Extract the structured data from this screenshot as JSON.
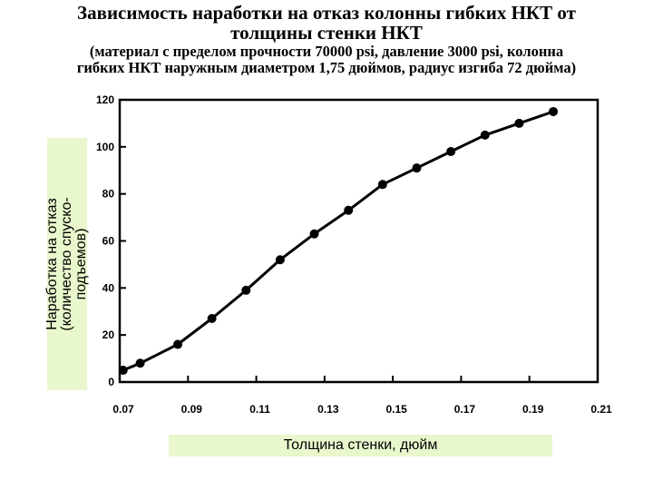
{
  "header": {
    "title_line1": "Зависимость наработки на отказ колонны гибких НКТ от",
    "title_line2": "толщины стенки НКТ",
    "subtitle_line1": "(материал с пределом прочности 70000 psi, давление 3000 psi, колонна",
    "subtitle_line2": "гибких НКТ наружным диаметром 1,75 дюймов, радиус изгиба 72 дюйма)"
  },
  "chart_data": {
    "type": "line",
    "ylabel_lines": [
      "Наработка на отказ",
      "(количество спуско-",
      "подъемов)"
    ],
    "xlabel": "Толщина стенки, дюйм",
    "xlim": [
      0.07,
      0.21
    ],
    "ylim": [
      0,
      120
    ],
    "x_ticks": [
      "0.07",
      "0.09",
      "0.11",
      "0.13",
      "0.15",
      "0.17",
      "0.19",
      "0.21"
    ],
    "y_ticks": [
      "0",
      "20",
      "40",
      "60",
      "80",
      "100",
      "120"
    ],
    "grid": false,
    "series": [
      {
        "color": "#000000",
        "x": [
          0.071,
          0.076,
          0.087,
          0.097,
          0.107,
          0.117,
          0.127,
          0.137,
          0.147,
          0.157,
          0.167,
          0.177,
          0.187,
          0.197
        ],
        "y": [
          5,
          8,
          16,
          27,
          39,
          52,
          63,
          73,
          84,
          91,
          98,
          105,
          110,
          115
        ]
      }
    ]
  }
}
